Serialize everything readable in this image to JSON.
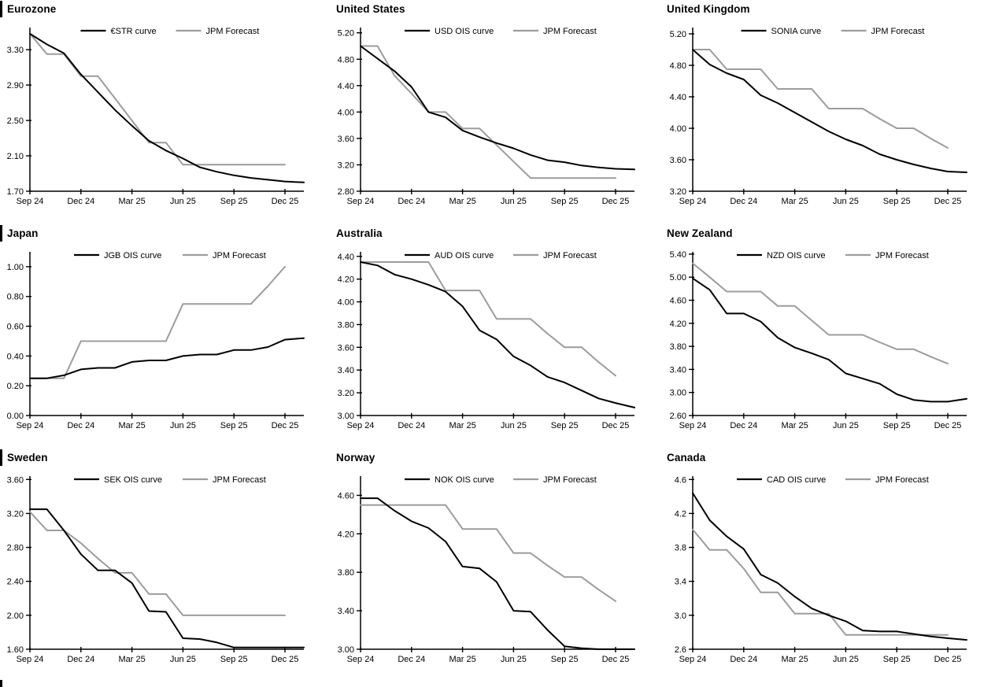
{
  "colors": {
    "curve": "#000000",
    "forecast": "#9c9c9c",
    "axis": "#000000"
  },
  "x_axis": {
    "start": "Sep 24",
    "end": "Dec 25",
    "unit": "month"
  },
  "chart_data": [
    {
      "type": "line",
      "title": "Eurozone",
      "left_bar": true,
      "x_tick_labels": [
        "Sep 24",
        "Dec 24",
        "Mar 25",
        "Jun 25",
        "Sep 25",
        "Dec 25"
      ],
      "y_tick_labels": [
        "3.30",
        "2.90",
        "2.50",
        "2.10",
        "1.70"
      ],
      "ylim": [
        1.7,
        3.55
      ],
      "legend_position": "top-center",
      "series": [
        {
          "name": "€STR curve",
          "role": "market-curve",
          "color": "#000000",
          "values": [
            3.48,
            3.36,
            3.26,
            3.02,
            2.82,
            2.62,
            2.44,
            2.27,
            2.16,
            2.07,
            1.97,
            1.92,
            1.88,
            1.85,
            1.83,
            1.81,
            1.8
          ]
        },
        {
          "name": "JPM Forecast",
          "role": "forecast",
          "color": "#9c9c9c",
          "values": [
            3.48,
            3.25,
            3.25,
            3.0,
            3.0,
            2.75,
            2.5,
            2.25,
            2.25,
            2.0,
            2.0,
            2.0,
            2.0,
            2.0,
            2.0,
            2.0
          ]
        }
      ]
    },
    {
      "type": "line",
      "title": "United States",
      "left_bar": false,
      "x_tick_labels": [
        "Sep 24",
        "Dec 24",
        "Mar 25",
        "Jun 25",
        "Sep 25",
        "Dec 25"
      ],
      "y_tick_labels": [
        "5.20",
        "4.80",
        "4.40",
        "4.00",
        "3.60",
        "3.20",
        "2.80"
      ],
      "ylim": [
        2.8,
        5.28
      ],
      "legend_position": "top-center",
      "series": [
        {
          "name": "USD OIS curve",
          "role": "market-curve",
          "color": "#000000",
          "values": [
            5.0,
            4.81,
            4.62,
            4.38,
            4.0,
            3.92,
            3.72,
            3.62,
            3.53,
            3.45,
            3.35,
            3.27,
            3.24,
            3.19,
            3.16,
            3.14,
            3.13
          ]
        },
        {
          "name": "JPM Forecast",
          "role": "forecast",
          "color": "#9c9c9c",
          "values": [
            5.0,
            5.0,
            4.55,
            4.28,
            4.0,
            4.0,
            3.75,
            3.75,
            3.5,
            3.25,
            3.0,
            3.0,
            3.0,
            3.0,
            3.0,
            3.0
          ]
        }
      ]
    },
    {
      "type": "line",
      "title": "United Kingdom",
      "left_bar": false,
      "x_tick_labels": [
        "Sep 24",
        "Dec 24",
        "Mar 25",
        "Jun 25",
        "Sep 25",
        "Dec 25"
      ],
      "y_tick_labels": [
        "5.20",
        "4.80",
        "4.40",
        "4.00",
        "3.60",
        "3.20"
      ],
      "ylim": [
        3.2,
        5.28
      ],
      "legend_position": "top-center",
      "series": [
        {
          "name": "SONIA curve",
          "role": "market-curve",
          "color": "#000000",
          "values": [
            5.0,
            4.81,
            4.7,
            4.62,
            4.42,
            4.32,
            4.2,
            4.08,
            3.96,
            3.86,
            3.78,
            3.67,
            3.6,
            3.54,
            3.49,
            3.45,
            3.44
          ]
        },
        {
          "name": "JPM Forecast",
          "role": "forecast",
          "color": "#9c9c9c",
          "values": [
            5.0,
            5.0,
            4.75,
            4.75,
            4.75,
            4.5,
            4.5,
            4.5,
            4.25,
            4.25,
            4.25,
            4.12,
            4.0,
            4.0,
            3.87,
            3.75
          ]
        }
      ]
    },
    {
      "type": "line",
      "title": "Japan",
      "left_bar": true,
      "x_tick_labels": [
        "Sep 24",
        "Dec 24",
        "Mar 25",
        "Jun 25",
        "Sep 25",
        "Dec 25"
      ],
      "y_tick_labels": [
        "1.00",
        "0.80",
        "0.60",
        "0.40",
        "0.20",
        "0.00"
      ],
      "ylim": [
        0.0,
        1.1
      ],
      "legend_position": "top-center",
      "series": [
        {
          "name": "JGB OIS curve",
          "role": "market-curve",
          "color": "#000000",
          "values": [
            0.25,
            0.25,
            0.27,
            0.31,
            0.32,
            0.32,
            0.36,
            0.37,
            0.37,
            0.4,
            0.41,
            0.41,
            0.44,
            0.44,
            0.46,
            0.51,
            0.52
          ]
        },
        {
          "name": "JPM Forecast",
          "role": "forecast",
          "color": "#9c9c9c",
          "values": [
            0.25,
            0.25,
            0.25,
            0.5,
            0.5,
            0.5,
            0.5,
            0.5,
            0.5,
            0.75,
            0.75,
            0.75,
            0.75,
            0.75,
            0.87,
            1.0
          ]
        }
      ]
    },
    {
      "type": "line",
      "title": "Australia",
      "left_bar": false,
      "x_tick_labels": [
        "Sep 24",
        "Dec 24",
        "Mar 25",
        "Jun 25",
        "Sep 25",
        "Dec 25"
      ],
      "y_tick_labels": [
        "4.40",
        "4.20",
        "4.00",
        "3.80",
        "3.60",
        "3.40",
        "3.20",
        "3.00"
      ],
      "ylim": [
        3.0,
        4.44
      ],
      "legend_position": "top-center",
      "series": [
        {
          "name": "AUD OIS curve",
          "role": "market-curve",
          "color": "#000000",
          "values": [
            4.35,
            4.32,
            4.24,
            4.2,
            4.15,
            4.09,
            3.96,
            3.75,
            3.67,
            3.52,
            3.44,
            3.34,
            3.29,
            3.22,
            3.15,
            3.11,
            3.07
          ]
        },
        {
          "name": "JPM Forecast",
          "role": "forecast",
          "color": "#9c9c9c",
          "values": [
            4.35,
            4.35,
            4.35,
            4.35,
            4.35,
            4.1,
            4.1,
            4.1,
            3.85,
            3.85,
            3.85,
            3.72,
            3.6,
            3.6,
            3.47,
            3.35
          ]
        }
      ]
    },
    {
      "type": "line",
      "title": "New Zealand",
      "left_bar": false,
      "x_tick_labels": [
        "Sep 24",
        "Dec 24",
        "Mar 25",
        "Jun 25",
        "Sep 25",
        "Dec 25"
      ],
      "y_tick_labels": [
        "5.40",
        "5.00",
        "4.60",
        "4.20",
        "3.80",
        "3.40",
        "3.00",
        "2.60"
      ],
      "ylim": [
        2.6,
        5.44
      ],
      "legend_position": "top-center",
      "series": [
        {
          "name": "NZD OIS curve",
          "role": "market-curve",
          "color": "#000000",
          "values": [
            4.98,
            4.78,
            4.37,
            4.37,
            4.23,
            3.95,
            3.78,
            3.68,
            3.57,
            3.33,
            3.24,
            3.15,
            2.97,
            2.87,
            2.84,
            2.84,
            2.89
          ]
        },
        {
          "name": "JPM Forecast",
          "role": "forecast",
          "color": "#9c9c9c",
          "values": [
            5.24,
            5.0,
            4.75,
            4.75,
            4.75,
            4.5,
            4.5,
            4.25,
            4.0,
            4.0,
            4.0,
            3.87,
            3.75,
            3.75,
            3.62,
            3.5
          ]
        }
      ]
    },
    {
      "type": "line",
      "title": "Sweden",
      "left_bar": true,
      "x_tick_labels": [
        "Sep 24",
        "Dec 24",
        "Mar 25",
        "Jun 25",
        "Sep 25",
        "Dec 25"
      ],
      "y_tick_labels": [
        "3.60",
        "3.20",
        "2.80",
        "2.40",
        "2.00",
        "1.60"
      ],
      "ylim": [
        1.6,
        3.64
      ],
      "legend_position": "top-center",
      "series": [
        {
          "name": "SEK OIS curve",
          "role": "market-curve",
          "color": "#000000",
          "values": [
            3.25,
            3.25,
            3.0,
            2.72,
            2.53,
            2.53,
            2.38,
            2.05,
            2.04,
            1.73,
            1.72,
            1.68,
            1.62,
            1.62,
            1.62,
            1.62,
            1.62
          ]
        },
        {
          "name": "JPM Forecast",
          "role": "forecast",
          "color": "#9c9c9c",
          "values": [
            3.22,
            3.0,
            3.0,
            2.85,
            2.67,
            2.5,
            2.5,
            2.25,
            2.25,
            2.0,
            2.0,
            2.0,
            2.0,
            2.0,
            2.0,
            2.0
          ]
        }
      ]
    },
    {
      "type": "line",
      "title": "Norway",
      "left_bar": false,
      "x_tick_labels": [
        "Sep 24",
        "Dec 24",
        "Mar 25",
        "Jun 25",
        "Sep 25",
        "Dec 25"
      ],
      "y_tick_labels": [
        "4.60",
        "4.20",
        "3.80",
        "3.40",
        "3.00"
      ],
      "ylim": [
        3.0,
        4.8
      ],
      "legend_position": "top-center",
      "series": [
        {
          "name": "NOK OIS curve",
          "role": "market-curve",
          "color": "#000000",
          "values": [
            4.57,
            4.57,
            4.44,
            4.33,
            4.26,
            4.12,
            3.86,
            3.84,
            3.7,
            3.4,
            3.39,
            3.2,
            3.03,
            3.01,
            3.0,
            3.0,
            3.0
          ]
        },
        {
          "name": "JPM Forecast",
          "role": "forecast",
          "color": "#9c9c9c",
          "values": [
            4.5,
            4.5,
            4.5,
            4.5,
            4.5,
            4.5,
            4.25,
            4.25,
            4.25,
            4.0,
            4.0,
            3.87,
            3.75,
            3.75,
            3.62,
            3.5
          ]
        }
      ]
    },
    {
      "type": "line",
      "title": "Canada",
      "left_bar": false,
      "x_tick_labels": [
        "Sep 24",
        "Dec 24",
        "Mar 25",
        "Jun 25",
        "Sep 25",
        "Dec 25"
      ],
      "y_tick_labels": [
        "4.6",
        "4.2",
        "3.8",
        "3.4",
        "3.0",
        "2.6"
      ],
      "ylim": [
        2.6,
        4.64
      ],
      "legend_position": "top-center",
      "series": [
        {
          "name": "CAD OIS curve",
          "role": "market-curve",
          "color": "#000000",
          "values": [
            4.44,
            4.12,
            3.93,
            3.78,
            3.48,
            3.38,
            3.22,
            3.08,
            3.0,
            2.93,
            2.82,
            2.81,
            2.81,
            2.78,
            2.75,
            2.73,
            2.71
          ]
        },
        {
          "name": "JPM Forecast",
          "role": "forecast",
          "color": "#9c9c9c",
          "values": [
            4.01,
            3.77,
            3.77,
            3.55,
            3.27,
            3.27,
            3.02,
            3.02,
            3.02,
            2.77,
            2.77,
            2.77,
            2.77,
            2.77,
            2.77,
            2.77
          ]
        }
      ]
    }
  ]
}
